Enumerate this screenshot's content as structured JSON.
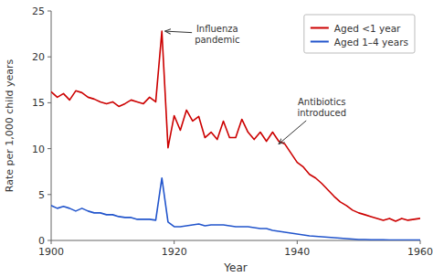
{
  "chart_data": {
    "type": "line",
    "xlabel": "Year",
    "ylabel": "Rate per 1,000 child years",
    "xlim": [
      1900,
      1960
    ],
    "ylim": [
      0,
      25
    ],
    "xticks": [
      1900,
      1920,
      1940,
      1960
    ],
    "yticks": [
      0,
      5,
      10,
      15,
      20,
      25
    ],
    "grid": false,
    "legend": "upper right",
    "x": [
      1900,
      1901,
      1902,
      1903,
      1904,
      1905,
      1906,
      1907,
      1908,
      1909,
      1910,
      1911,
      1912,
      1913,
      1914,
      1915,
      1916,
      1917,
      1918,
      1919,
      1920,
      1921,
      1922,
      1923,
      1924,
      1925,
      1926,
      1927,
      1928,
      1929,
      1930,
      1931,
      1932,
      1933,
      1934,
      1935,
      1936,
      1937,
      1938,
      1939,
      1940,
      1941,
      1942,
      1943,
      1944,
      1945,
      1946,
      1947,
      1948,
      1949,
      1950,
      1951,
      1952,
      1953,
      1954,
      1955,
      1956,
      1957,
      1958,
      1959,
      1960
    ],
    "series": [
      {
        "name": "Aged <1 year",
        "color": "#cc0000",
        "values": [
          16.2,
          15.6,
          16.0,
          15.3,
          16.3,
          16.1,
          15.6,
          15.4,
          15.1,
          14.9,
          15.1,
          14.6,
          14.9,
          15.3,
          15.1,
          14.9,
          15.6,
          15.1,
          22.8,
          10.1,
          13.6,
          12.0,
          14.2,
          13.0,
          13.5,
          11.2,
          11.8,
          11.0,
          13.0,
          11.2,
          11.2,
          13.2,
          11.8,
          11.0,
          11.8,
          10.8,
          11.8,
          10.8,
          10.5,
          9.5,
          8.5,
          8.0,
          7.2,
          6.8,
          6.2,
          5.5,
          4.8,
          4.2,
          3.8,
          3.3,
          3.0,
          2.8,
          2.6,
          2.4,
          2.2,
          2.4,
          2.1,
          2.4,
          2.2,
          2.3,
          2.4
        ]
      },
      {
        "name": "Aged 1–4 years",
        "color": "#2255cc",
        "values": [
          3.8,
          3.5,
          3.7,
          3.5,
          3.2,
          3.5,
          3.2,
          3.0,
          3.0,
          2.8,
          2.8,
          2.6,
          2.5,
          2.5,
          2.3,
          2.3,
          2.3,
          2.2,
          6.8,
          2.0,
          1.5,
          1.5,
          1.6,
          1.7,
          1.8,
          1.6,
          1.7,
          1.7,
          1.7,
          1.6,
          1.5,
          1.5,
          1.5,
          1.4,
          1.3,
          1.3,
          1.1,
          1.0,
          0.9,
          0.8,
          0.7,
          0.6,
          0.5,
          0.45,
          0.4,
          0.35,
          0.3,
          0.25,
          0.2,
          0.15,
          0.1,
          0.1,
          0.08,
          0.07,
          0.06,
          0.05,
          0.05,
          0.04,
          0.05,
          0.05,
          0.05
        ]
      }
    ],
    "annotations": [
      {
        "text": "Influenza\npandemic",
        "x": 1918.5,
        "y": 22.8,
        "text_x": 1927,
        "text_y": 22.5
      },
      {
        "text": "Antibiotics\nintroduced",
        "x": 1937,
        "y": 10.5,
        "text_x": 1944,
        "text_y": 14.5
      }
    ]
  }
}
